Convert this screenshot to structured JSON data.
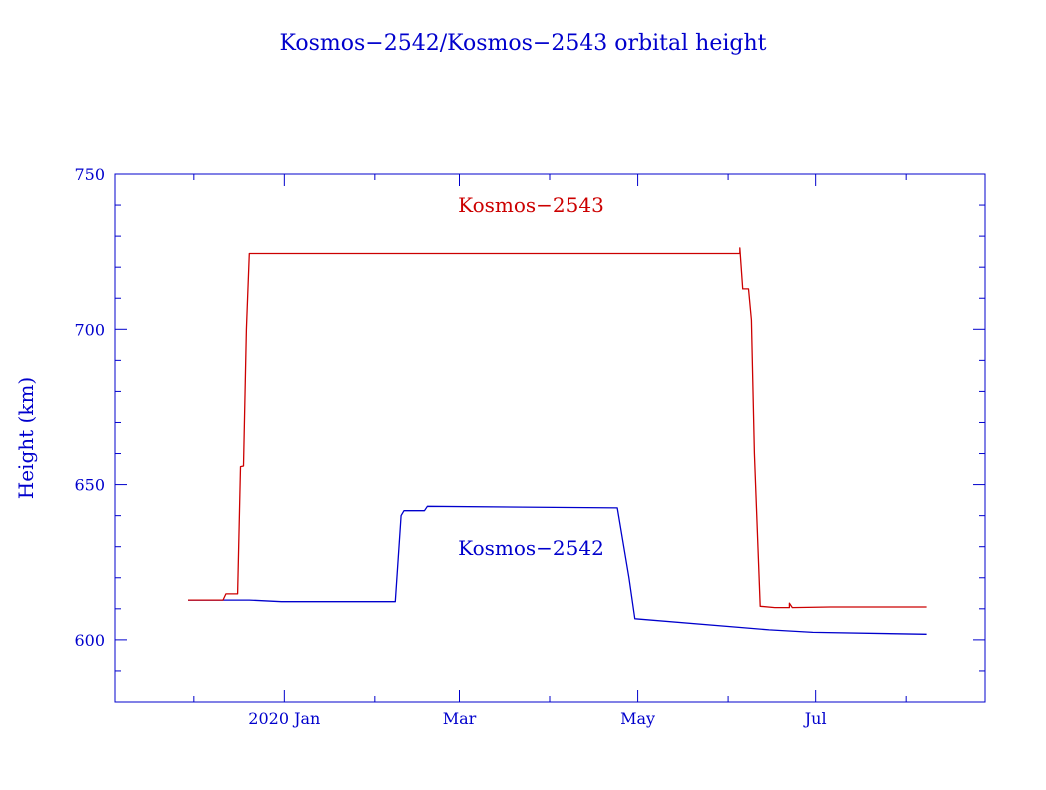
{
  "chart_data": {
    "type": "line",
    "title": "Kosmos−2542/Kosmos−2543 orbital height",
    "ylabel": "Height (km)",
    "xlabel": "",
    "xlim": [
      "2019-11-04",
      "2020-08-28"
    ],
    "ylim": [
      580,
      750
    ],
    "yticks": [
      "600",
      "650",
      "700",
      "750"
    ],
    "xticks": [
      {
        "date": "2020-01-01",
        "label": "2020 Jan"
      },
      {
        "date": "2020-03-01",
        "label": "Mar"
      },
      {
        "date": "2020-05-01",
        "label": "May"
      },
      {
        "date": "2020-07-01",
        "label": "Jul"
      }
    ],
    "grid": false,
    "series": [
      {
        "name": "Kosmos−2542",
        "color": "#0000cc",
        "points": [
          [
            "2019-11-29",
            612.8
          ],
          [
            "2019-12-20",
            612.8
          ],
          [
            "2019-12-31",
            612.3
          ],
          [
            "2020-02-08",
            612.3
          ],
          [
            "2020-02-10",
            640.0
          ],
          [
            "2020-02-11",
            641.6
          ],
          [
            "2020-02-18",
            641.6
          ],
          [
            "2020-02-19",
            643.0
          ],
          [
            "2020-04-24",
            642.5
          ],
          [
            "2020-04-28",
            620.0
          ],
          [
            "2020-04-30",
            606.8
          ],
          [
            "2020-06-15",
            603.2
          ],
          [
            "2020-06-30",
            602.4
          ],
          [
            "2020-08-08",
            601.8
          ]
        ]
      },
      {
        "name": "Kosmos−2543",
        "color": "#cc0000",
        "points": [
          [
            "2019-11-29",
            612.8
          ],
          [
            "2019-12-11",
            612.8
          ],
          [
            "2019-12-12",
            614.8
          ],
          [
            "2019-12-16",
            614.8
          ],
          [
            "2019-12-17",
            655.8
          ],
          [
            "2019-12-18",
            656.0
          ],
          [
            "2019-12-19",
            700.0
          ],
          [
            "2019-12-20",
            724.4
          ],
          [
            "2020-06-05",
            724.4
          ],
          [
            "2020-06-05",
            726.2
          ],
          [
            "2020-06-06",
            713.0
          ],
          [
            "2020-06-08",
            713.0
          ],
          [
            "2020-06-09",
            703.0
          ],
          [
            "2020-06-10",
            660.0
          ],
          [
            "2020-06-12",
            610.8
          ],
          [
            "2020-06-17",
            610.4
          ],
          [
            "2020-06-22",
            610.4
          ],
          [
            "2020-06-22",
            611.8
          ],
          [
            "2020-06-23",
            610.4
          ],
          [
            "2020-07-06",
            610.6
          ],
          [
            "2020-08-08",
            610.6
          ]
        ]
      }
    ],
    "annotations": [
      {
        "text": "Kosmos−2543",
        "color": "#cc0000"
      },
      {
        "text": "Kosmos−2542",
        "color": "#0000cc"
      }
    ]
  }
}
